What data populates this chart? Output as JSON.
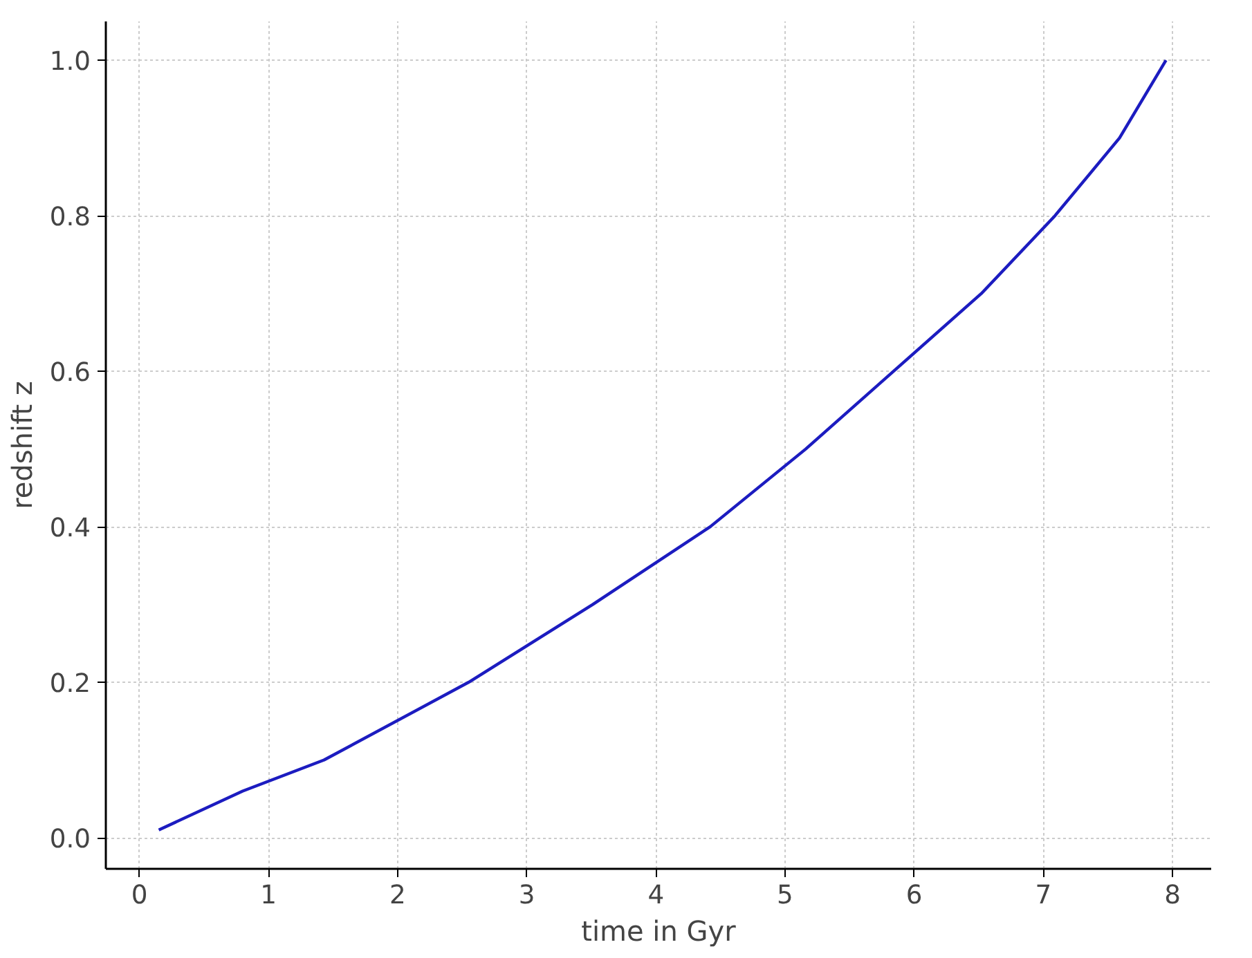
{
  "chart_data": {
    "type": "line",
    "xlabel": "time in Gyr",
    "ylabel": "redshift z",
    "x": [
      0.15,
      0.8,
      1.43,
      2.55,
      3.51,
      4.42,
      5.16,
      5.84,
      6.52,
      7.09,
      7.59,
      7.95
    ],
    "series": [
      {
        "color": "#1c1cc0",
        "values": [
          0.01,
          0.06,
          0.1,
          0.2,
          0.3,
          0.4,
          0.5,
          0.6,
          0.7,
          0.8,
          0.9,
          1.0
        ]
      }
    ],
    "xlim": [
      -0.26,
      8.3
    ],
    "ylim": [
      -0.04,
      1.05
    ],
    "xticks": [
      0,
      1,
      2,
      3,
      4,
      5,
      6,
      7,
      8
    ],
    "yticks": [
      {
        "value": 0,
        "label": "0.0"
      },
      {
        "value": 0.2,
        "label": "0.2"
      },
      {
        "value": 0.4,
        "label": "0.4"
      },
      {
        "value": 0.6,
        "label": "0.6"
      },
      {
        "value": 0.8,
        "label": "0.8"
      },
      {
        "value": 1.0,
        "label": "1.0"
      }
    ],
    "grid": true,
    "line_style": "solid"
  }
}
